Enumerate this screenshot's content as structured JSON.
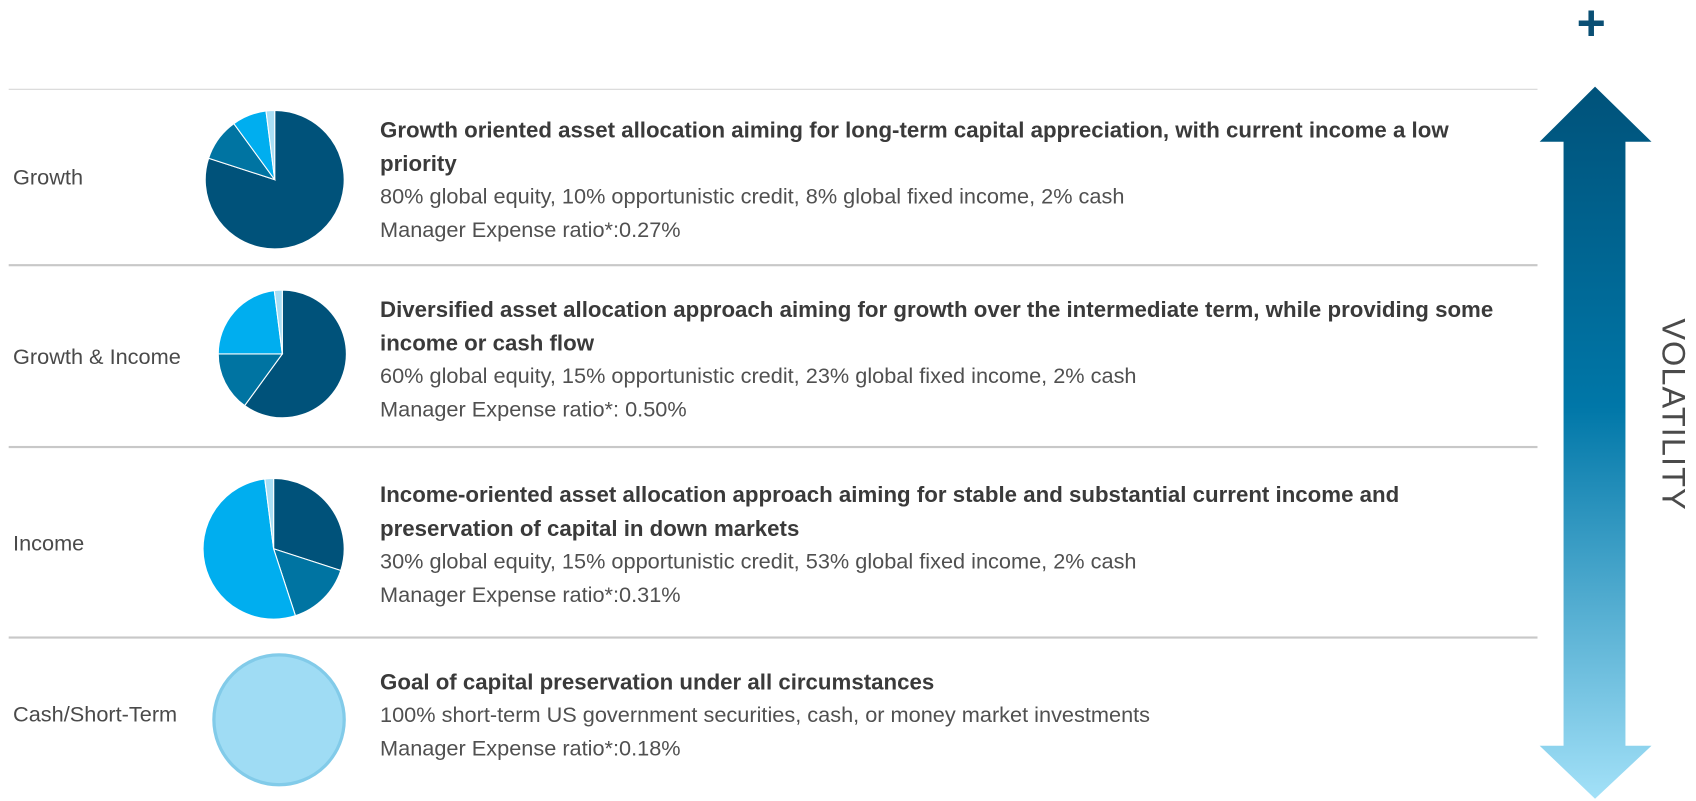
{
  "rows": [
    {
      "label": "Growth",
      "title": "Growth oriented asset allocation aiming for long-term capital appreciation, with current income a low priority",
      "allocation": "80% global equity, 10% opportunistic credit, 8% global fixed income, 2% cash",
      "expense": "Manager Expense ratio*:0.27%",
      "pie": [
        80,
        10,
        8,
        2
      ],
      "pie_colors": [
        "#00527a",
        "#0074a2",
        "#00aeef",
        "#a8def5"
      ]
    },
    {
      "label": "Growth & Income",
      "title": "Diversified asset allocation approach aiming for growth over the intermediate term, while providing some income or cash flow",
      "allocation": "60% global equity, 15% opportunistic credit, 23% global fixed income, 2% cash",
      "expense": "Manager Expense ratio*: 0.50%",
      "pie": [
        60,
        15,
        23,
        2
      ],
      "pie_colors": [
        "#00527a",
        "#0074a2",
        "#00aeef",
        "#a8def5"
      ]
    },
    {
      "label": "Income",
      "title": "Income-oriented asset allocation approach aiming for stable and substantial current income and preservation of capital in down markets",
      "allocation": "30% global equity, 15% opportunistic credit, 53% global fixed income, 2% cash",
      "expense": "Manager Expense ratio*:0.31%",
      "pie": [
        30,
        15,
        53,
        2
      ],
      "pie_colors": [
        "#00527a",
        "#0074a2",
        "#00aeef",
        "#a8def5"
      ]
    },
    {
      "label": "Cash/Short-Term",
      "title": "Goal of capital preservation under all circumstances",
      "allocation": "100% short-term US government securities, cash, or money market investments",
      "expense": "Manager Expense ratio*:0.18%",
      "pie": [
        100
      ],
      "pie_colors": [
        "#9fdcf4"
      ]
    }
  ],
  "arrow": {
    "top": "+",
    "label": "VOLATILITY"
  }
}
